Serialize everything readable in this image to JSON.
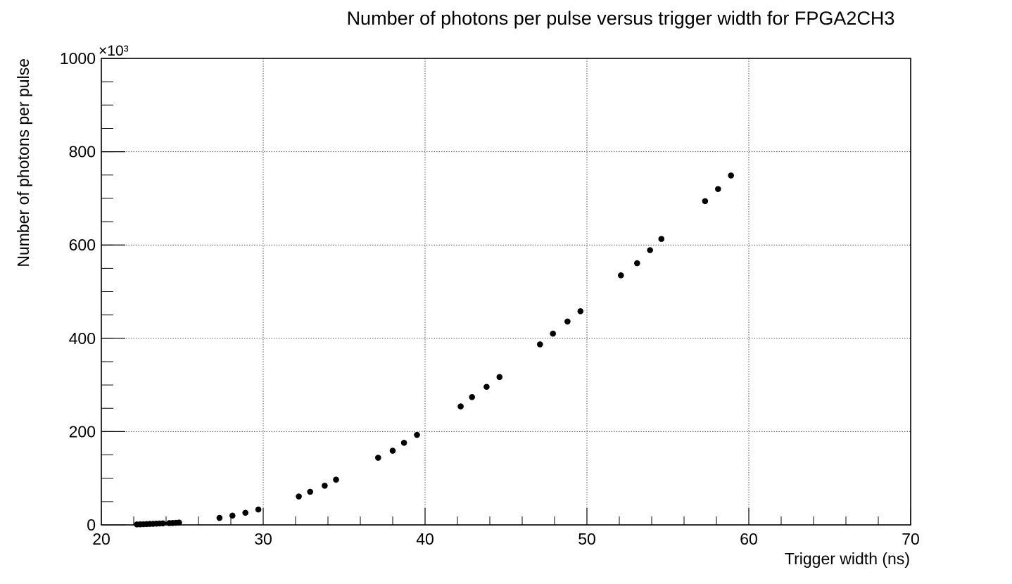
{
  "chart_data": {
    "type": "scatter",
    "title": "Number of photons per pulse versus trigger width for FPGA2CH3",
    "xlabel": "Trigger width (ns)",
    "ylabel": "Number of photons per pulse",
    "y_multiplier_label": "×10³",
    "xlim": [
      20,
      70
    ],
    "ylim": [
      0,
      1000
    ],
    "x_ticks": [
      20,
      30,
      40,
      50,
      60,
      70
    ],
    "y_ticks": [
      0,
      200,
      400,
      600,
      800,
      1000
    ],
    "grid": true,
    "marker_color": "#000000",
    "points": [
      {
        "x": 22.2,
        "y": 1.0
      },
      {
        "x": 22.4,
        "y": 1.2
      },
      {
        "x": 22.6,
        "y": 1.5
      },
      {
        "x": 22.8,
        "y": 1.8
      },
      {
        "x": 23.0,
        "y": 2.1
      },
      {
        "x": 23.2,
        "y": 2.4
      },
      {
        "x": 23.4,
        "y": 2.7
      },
      {
        "x": 23.6,
        "y": 3.0
      },
      {
        "x": 23.8,
        "y": 3.3
      },
      {
        "x": 24.2,
        "y": 3.8
      },
      {
        "x": 24.4,
        "y": 4.1
      },
      {
        "x": 24.6,
        "y": 4.5
      },
      {
        "x": 24.8,
        "y": 5.0
      },
      {
        "x": 27.3,
        "y": 15
      },
      {
        "x": 28.1,
        "y": 20
      },
      {
        "x": 28.9,
        "y": 26
      },
      {
        "x": 29.7,
        "y": 33
      },
      {
        "x": 32.2,
        "y": 61
      },
      {
        "x": 32.9,
        "y": 71
      },
      {
        "x": 33.8,
        "y": 84
      },
      {
        "x": 34.5,
        "y": 97
      },
      {
        "x": 37.1,
        "y": 144
      },
      {
        "x": 38.0,
        "y": 159
      },
      {
        "x": 38.7,
        "y": 176
      },
      {
        "x": 39.5,
        "y": 193
      },
      {
        "x": 42.2,
        "y": 254
      },
      {
        "x": 42.9,
        "y": 274
      },
      {
        "x": 43.8,
        "y": 296
      },
      {
        "x": 44.6,
        "y": 317
      },
      {
        "x": 47.1,
        "y": 387
      },
      {
        "x": 47.9,
        "y": 410
      },
      {
        "x": 48.8,
        "y": 436
      },
      {
        "x": 49.6,
        "y": 458
      },
      {
        "x": 52.1,
        "y": 535
      },
      {
        "x": 53.1,
        "y": 561
      },
      {
        "x": 53.9,
        "y": 589
      },
      {
        "x": 54.6,
        "y": 613
      },
      {
        "x": 57.3,
        "y": 694
      },
      {
        "x": 58.1,
        "y": 720
      },
      {
        "x": 58.9,
        "y": 749
      }
    ]
  }
}
